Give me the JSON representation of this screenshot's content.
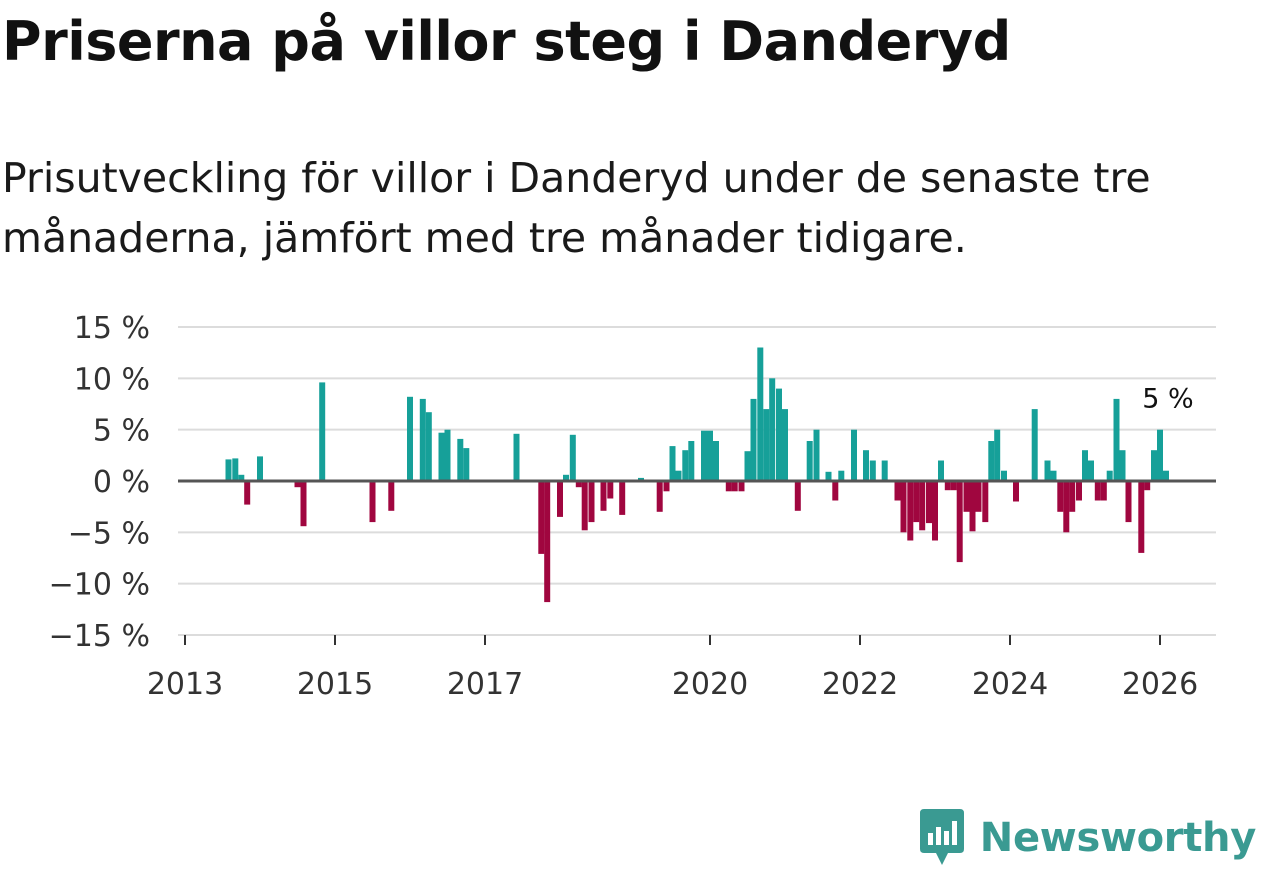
{
  "title": "Priserna på villor steg i Danderyd",
  "subtitle": "Prisutveckling för villor i Danderyd under de senaste tre månaderna, jämfört med tre månader tidigare.",
  "brand": {
    "name": "Newsworthy"
  },
  "colors": {
    "positive": "#16a099",
    "negative": "#a0063f",
    "grid": "#dcdcdc",
    "zero": "#555555",
    "brand": "#3a9a92"
  },
  "chart_data": {
    "type": "bar",
    "ylabel": "",
    "xlabel": "",
    "ylim": [
      -15,
      15
    ],
    "xlim": [
      2013,
      2026.7
    ],
    "y_ticks": [
      15,
      10,
      5,
      0,
      -5,
      -10,
      -15
    ],
    "y_tick_labels": [
      "15 %",
      "10 %",
      "5 %",
      "0 %",
      "−5 %",
      "−10 %",
      "−15 %"
    ],
    "x_ticks": [
      2013,
      2015,
      2017,
      2020,
      2022,
      2024,
      2026
    ],
    "x_tick_labels": [
      "2013",
      "2015",
      "2017",
      "2020",
      "2022",
      "2024",
      "2026"
    ],
    "annotation": {
      "text": "5 %",
      "x": 2026.0,
      "y": 5
    },
    "x": [
      2013.58,
      2013.67,
      2013.75,
      2013.83,
      2014.0,
      2014.08,
      2014.5,
      2014.58,
      2014.83,
      2015.5,
      2015.75,
      2016.0,
      2016.17,
      2016.25,
      2016.42,
      2016.5,
      2016.67,
      2016.75,
      2017.42,
      2017.75,
      2017.83,
      2018.0,
      2018.08,
      2018.17,
      2018.25,
      2018.33,
      2018.42,
      2018.5,
      2018.58,
      2018.67,
      2018.83,
      2019.0,
      2019.08,
      2019.25,
      2019.33,
      2019.42,
      2019.5,
      2019.58,
      2019.67,
      2019.75,
      2019.92,
      2020.0,
      2020.08,
      2020.25,
      2020.33,
      2020.42,
      2020.5,
      2020.58,
      2020.67,
      2020.75,
      2020.83,
      2020.92,
      2021.0,
      2021.17,
      2021.33,
      2021.42,
      2021.58,
      2021.67,
      2021.75,
      2021.92,
      2022.0,
      2022.08,
      2022.17,
      2022.25,
      2022.33,
      2022.5,
      2022.58,
      2022.67,
      2022.75,
      2022.83,
      2022.92,
      2023.0,
      2023.08,
      2023.17,
      2023.25,
      2023.33,
      2023.42,
      2023.5,
      2023.58,
      2023.67,
      2023.75,
      2023.83,
      2023.92,
      2024.08,
      2024.33,
      2024.42,
      2024.5,
      2024.58,
      2024.67,
      2024.75,
      2024.83,
      2024.92,
      2025.0,
      2025.08,
      2025.17,
      2025.25,
      2025.33,
      2025.42,
      2025.5,
      2025.58,
      2025.75,
      2025.83,
      2025.92,
      2026.0,
      2026.08
    ],
    "values": [
      2.1,
      2.2,
      0.6,
      -2.3,
      2.4,
      0.0,
      -0.6,
      -4.4,
      9.6,
      -4.0,
      -2.9,
      8.2,
      8.0,
      6.7,
      4.7,
      5.0,
      4.1,
      3.2,
      4.6,
      -7.1,
      -11.8,
      -3.5,
      0.6,
      4.5,
      -0.6,
      -4.8,
      -4.0,
      0.0,
      -2.9,
      -1.7,
      -3.3,
      0.0,
      0.3,
      -0.1,
      -3.0,
      -1.0,
      3.4,
      1.0,
      3.0,
      3.9,
      4.9,
      4.9,
      3.9,
      -1.0,
      -1.0,
      -1.0,
      2.9,
      8.0,
      13.0,
      7.0,
      10.0,
      9.0,
      7.0,
      -2.9,
      3.9,
      5.0,
      0.9,
      -1.9,
      1.0,
      5.0,
      0.0,
      3.0,
      2.0,
      0.0,
      2.0,
      -1.9,
      -5.0,
      -5.8,
      -4.0,
      -4.8,
      -4.1,
      -5.8,
      2.0,
      -0.9,
      -0.9,
      -7.9,
      -3.0,
      -4.9,
      -3.0,
      -4.0,
      3.9,
      5.0,
      1.0,
      -2.0,
      7.0,
      0.0,
      2.0,
      1.0,
      -3.0,
      -5.0,
      -3.0,
      -1.9,
      3.0,
      2.0,
      -1.9,
      -1.9,
      1.0,
      8.0,
      3.0,
      -4.0,
      -7.0,
      -0.9,
      3.0,
      5.0,
      1.0
    ]
  }
}
